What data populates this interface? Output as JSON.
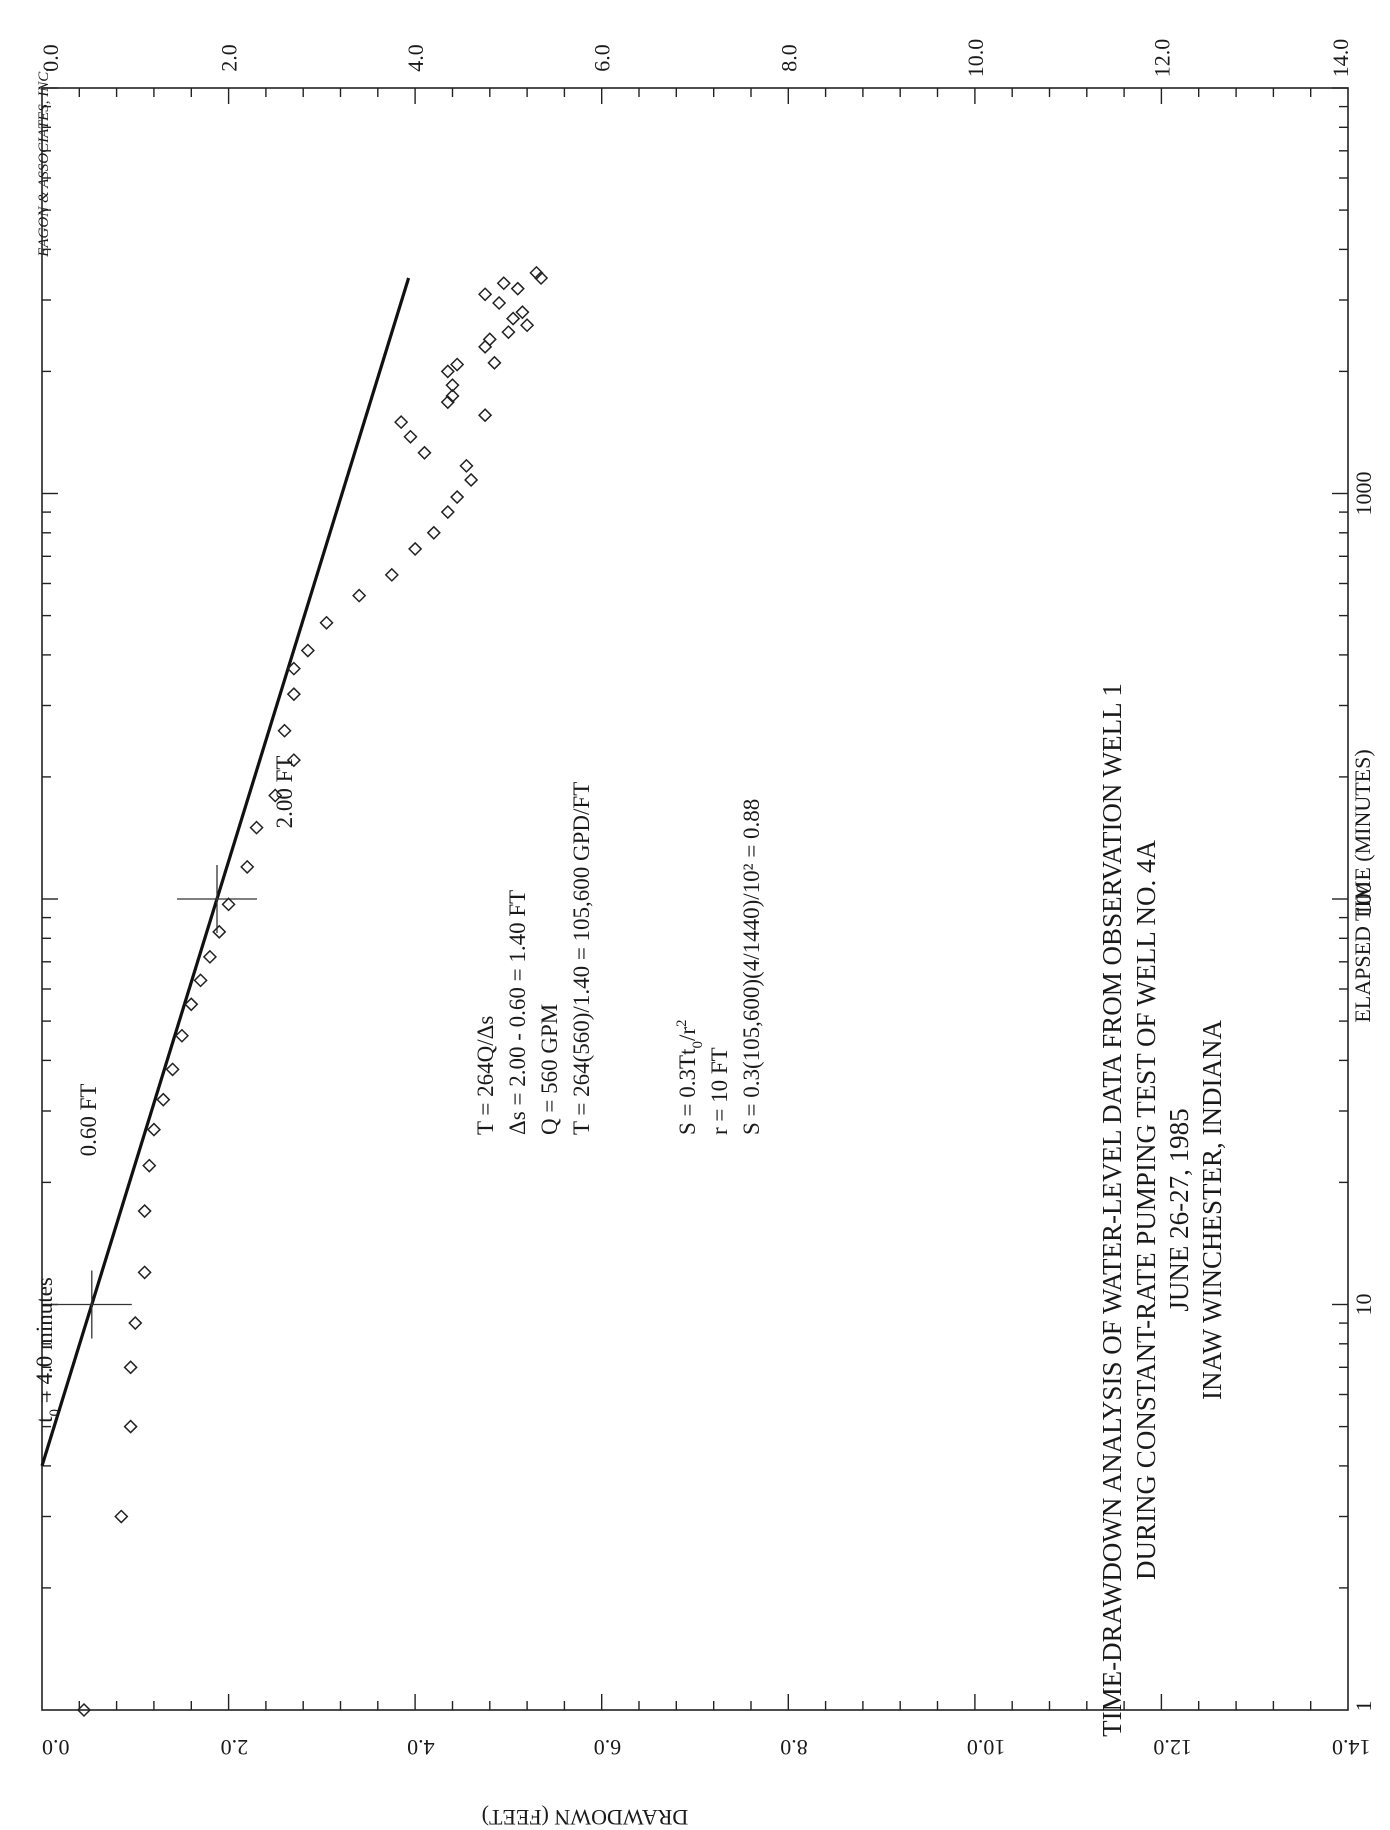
{
  "chart_data": {
    "type": "scatter",
    "orientation": "rotated",
    "title": [
      "TIME-DRAWDOWN ANALYSIS OF WATER-LEVEL DATA FROM OBSERVATION WELL 1",
      "DURING CONSTANT-RATE PUMPING TEST OF WELL NO. 4A",
      "JUNE 26-27, 1985",
      "INAW WINCHESTER, INDIANA"
    ],
    "credit": "EAGON & ASSOCIATES, INC.",
    "xlabel": "ELAPSED TIME  (MINUTES)",
    "ylabel": "DRAWDOWN (FEET)",
    "xscale": "log",
    "xlim": [
      1,
      10000
    ],
    "ylim": [
      0,
      14
    ],
    "y_inverted": true,
    "x_tick_labels": [
      "1",
      "10",
      "100",
      "1000"
    ],
    "y_tick_labels": [
      "0.0",
      "2.0",
      "4.0",
      "6.0",
      "8.0",
      "10.0",
      "12.0",
      "14.0"
    ],
    "grid": false,
    "series": [
      {
        "marker": "diamond",
        "points": [
          [
            1,
            0.45
          ],
          [
            3,
            0.85
          ],
          [
            5,
            0.95
          ],
          [
            7,
            0.95
          ],
          [
            9,
            1.0
          ],
          [
            12,
            1.1
          ],
          [
            17,
            1.1
          ],
          [
            22,
            1.15
          ],
          [
            27,
            1.2
          ],
          [
            32,
            1.3
          ],
          [
            38,
            1.4
          ],
          [
            46,
            1.5
          ],
          [
            55,
            1.6
          ],
          [
            63,
            1.7
          ],
          [
            72,
            1.8
          ],
          [
            83,
            1.9
          ],
          [
            97,
            2.0
          ],
          [
            120,
            2.2
          ],
          [
            150,
            2.3
          ],
          [
            180,
            2.5
          ],
          [
            220,
            2.7
          ],
          [
            260,
            2.6
          ],
          [
            320,
            2.7
          ],
          [
            370,
            2.7
          ],
          [
            410,
            2.85
          ],
          [
            480,
            3.05
          ],
          [
            560,
            3.4
          ],
          [
            630,
            3.75
          ],
          [
            730,
            4.0
          ],
          [
            800,
            4.2
          ],
          [
            900,
            4.35
          ],
          [
            980,
            4.45
          ],
          [
            1080,
            4.6
          ],
          [
            1170,
            4.55
          ],
          [
            1260,
            4.1
          ],
          [
            1380,
            3.95
          ],
          [
            1500,
            3.85
          ],
          [
            1560,
            4.75
          ],
          [
            1680,
            4.35
          ],
          [
            1740,
            4.4
          ],
          [
            1850,
            4.4
          ],
          [
            2000,
            4.35
          ],
          [
            2080,
            4.45
          ],
          [
            2100,
            4.85
          ],
          [
            2300,
            4.75
          ],
          [
            2400,
            4.8
          ],
          [
            2500,
            5.0
          ],
          [
            2600,
            5.2
          ],
          [
            2700,
            5.05
          ],
          [
            2800,
            5.15
          ],
          [
            2950,
            4.9
          ],
          [
            3100,
            4.75
          ],
          [
            3200,
            5.1
          ],
          [
            3300,
            4.95
          ],
          [
            3400,
            5.35
          ],
          [
            3500,
            5.3
          ]
        ]
      }
    ],
    "fit_line": {
      "x": [
        4,
        3400
      ],
      "y": [
        0,
        3.93
      ]
    },
    "annotations": {
      "t0_label": "t",
      "t0_sub": "0",
      "t0_rest": " = 4.0 minutes",
      "mark_1_label": "0.60 FT",
      "mark_2_label": "2.00 FT"
    },
    "calculations": [
      "T = 264Q/Δs",
      "Δs = 2.00 - 0.60 = 1.40 FT",
      "Q = 560 GPM",
      "T = 264(560)/1.40 = 105,600 GPD/FT"
    ],
    "storage_eq": {
      "lhs": "S = 0.3Tt",
      "sub": "0",
      "mid": "/r",
      "sup": "2"
    },
    "storage_lines": [
      "r = 10 FT",
      "S = 0.3(105,600)(4/1440)/10² = 0.88"
    ]
  }
}
